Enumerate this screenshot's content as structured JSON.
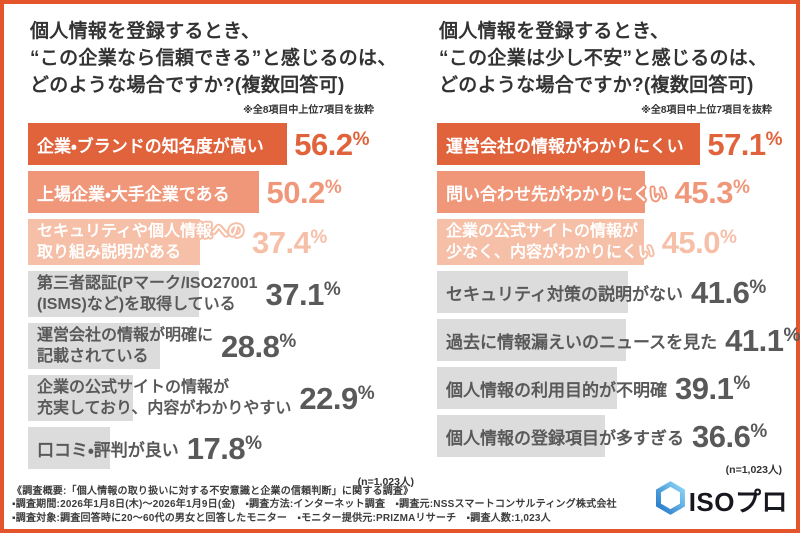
{
  "units": {
    "percent": "%"
  },
  "colors": {
    "frame": "#E4552B",
    "rank1": "#E0633C",
    "rank2": "#F0977A",
    "rank3": "#F6BFA7",
    "bar_gray": "#DCDCDC",
    "text_dark": "#333333",
    "text_gray": "#595959",
    "logo_blue_light": "#8FD6F6",
    "logo_blue_dark": "#2478C8",
    "logo_text": "#17171F"
  },
  "chart_data": [
    {
      "type": "bar",
      "orientation": "horizontal",
      "unit": "%",
      "title": "個人情報を登録するとき、\n“この企業なら信頼できる”と感じるのは、\nどのような場合ですか?(複数回答可)",
      "note": "※全8項目中上位7項目を抜粋",
      "sample": "(n=1,023人)",
      "items": [
        {
          "label": "企業・ブランドの知名度が高い",
          "value": 56.2,
          "display": "56.2"
        },
        {
          "label": "上場企業・大手企業である",
          "value": 50.2,
          "display": "50.2"
        },
        {
          "label": "セキュリティや個人情報への\n取り組み説明がある",
          "value": 37.4,
          "display": "37.4"
        },
        {
          "label": "第三者認証(Pマーク/ISO27001\n(ISMS)など)を取得している",
          "value": 37.1,
          "display": "37.1"
        },
        {
          "label": "運営会社の情報が明確に\n記載されている",
          "value": 28.8,
          "display": "28.8"
        },
        {
          "label": "企業の公式サイトの情報が\n充実しており、内容がわかりやすい",
          "value": 22.9,
          "display": "22.9"
        },
        {
          "label": "口コミ・評判が良い",
          "value": 17.8,
          "display": "17.8"
        }
      ]
    },
    {
      "type": "bar",
      "orientation": "horizontal",
      "unit": "%",
      "title": "個人情報を登録するとき、\n“この企業は少し不安”と感じるのは、\nどのような場合ですか?(複数回答可)",
      "note": "※全8項目中上位7項目を抜粋",
      "sample": "(n=1,023人)",
      "items": [
        {
          "label": "運営会社の情報がわかりにくい",
          "value": 57.1,
          "display": "57.1"
        },
        {
          "label": "問い合わせ先がわかりにくい",
          "value": 45.3,
          "display": "45.3"
        },
        {
          "label": "企業の公式サイトの情報が\n少なく、内容がわかりにくい",
          "value": 45.0,
          "display": "45.0"
        },
        {
          "label": "セキュリティ対策の説明がない",
          "value": 41.6,
          "display": "41.6"
        },
        {
          "label": "過去に情報漏えいのニュースを見た",
          "value": 41.1,
          "display": "41.1"
        },
        {
          "label": "個人情報の利用目的が不明確",
          "value": 39.1,
          "display": "39.1"
        },
        {
          "label": "個人情報の登録項目が多すぎる",
          "value": 36.6,
          "display": "36.6"
        }
      ]
    }
  ],
  "footer": {
    "lines": [
      "《調査概要:「個人情報の取り扱いに対する不安意識と企業の信頼判断」に関する調査》",
      "▪調査期間:2026年1月8日(木)〜2026年1月9日(金)　▪調査方法:インターネット調査　▪調査元:NSSスマートコンサルティング株式会社",
      "▪調査対象:調査回答時に20〜60代の男女と回答したモニター　▪モニター提供元:PRIZMAリサーチ　▪調査人数:1,023人"
    ]
  },
  "logo": {
    "text": "ISOプロ",
    "icon": "hexagon-icon"
  }
}
